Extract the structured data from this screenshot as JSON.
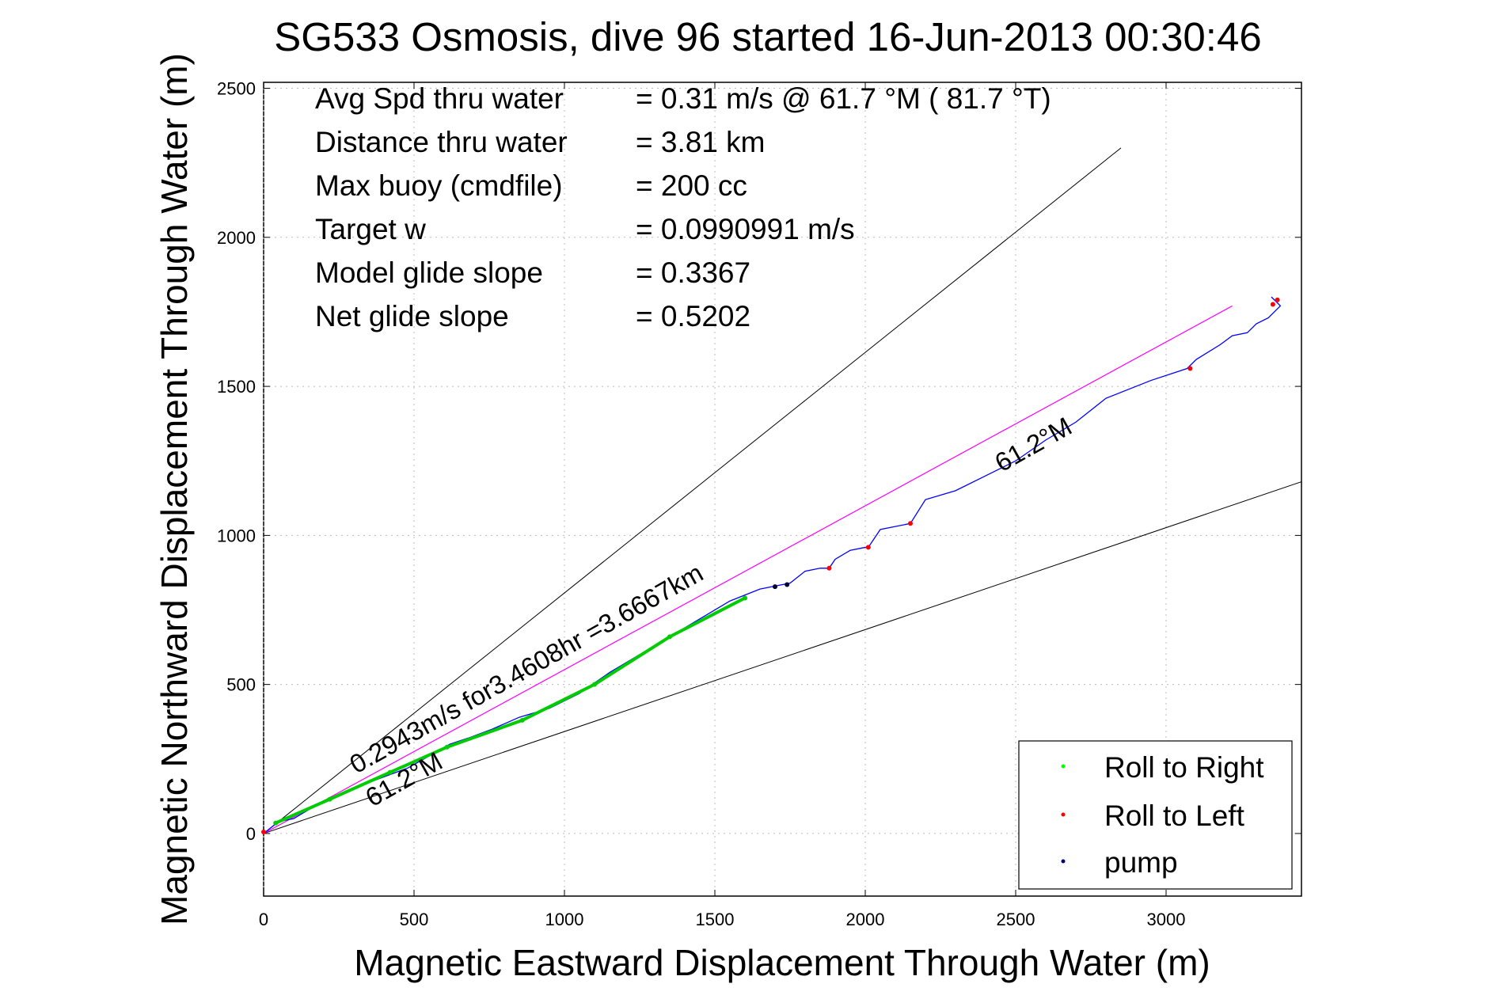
{
  "chart_data": {
    "type": "line",
    "title": "SG533 Osmosis, dive 96 started 16-Jun-2013 00:30:46",
    "xlabel": "Magnetic Eastward Displacement Through Water (m)",
    "ylabel": "Magnetic Northward Displacement Through Water (m)",
    "xlim": [
      0,
      3450
    ],
    "ylim": [
      -210,
      2520
    ],
    "xticks": [
      0,
      500,
      1000,
      1500,
      2000,
      2500,
      3000
    ],
    "yticks": [
      0,
      500,
      1000,
      1500,
      2000,
      2500
    ],
    "info": [
      {
        "label": "Avg Spd thru water",
        "value": "=  0.31 m/s @  61.7 °M ( 81.7 °T)"
      },
      {
        "label": "Distance thru water",
        "value": "=  3.81 km"
      },
      {
        "label": "Max buoy (cmdfile)",
        "value": "= 200 cc"
      },
      {
        "label": "Target w",
        "value": "= 0.0990991 m/s"
      },
      {
        "label": "Model glide slope",
        "value": "= 0.3367"
      },
      {
        "label": "Net glide slope",
        "value": "= 0.5202"
      }
    ],
    "annotations": {
      "speed_label": "0.2943m/s for3.4608hr =3.6667km",
      "heading_label_1": "61.2°M",
      "heading_label_2": "61.2°M"
    },
    "reference_lines": [
      {
        "name": "upper-envelope",
        "color": "#000000",
        "x": [
          0,
          2850
        ],
        "y": [
          0,
          2300
        ]
      },
      {
        "name": "lower-envelope",
        "color": "#000000",
        "x": [
          0,
          3450
        ],
        "y": [
          0,
          1180
        ]
      },
      {
        "name": "heading-line",
        "color": "#ff00ff",
        "x": [
          0,
          3220
        ],
        "y": [
          0,
          1770
        ]
      }
    ],
    "series": [
      {
        "name": "track",
        "color": "#0000ff",
        "x": [
          0,
          50,
          100,
          150,
          200,
          260,
          320,
          400,
          480,
          550,
          620,
          680,
          760,
          850,
          950,
          1050,
          1150,
          1250,
          1350,
          1450,
          1550,
          1650,
          1700,
          1750,
          1800,
          1850,
          1880,
          1900,
          1950,
          2000,
          2010,
          2050,
          2150,
          2200,
          2300,
          2400,
          2500,
          2600,
          2700,
          2800,
          2950,
          3070,
          3100,
          3180,
          3220,
          3270,
          3300,
          3340,
          3360,
          3380,
          3350
        ],
        "y": [
          0,
          40,
          50,
          80,
          110,
          130,
          160,
          190,
          220,
          260,
          300,
          320,
          350,
          390,
          420,
          470,
          540,
          600,
          660,
          720,
          780,
          820,
          830,
          840,
          880,
          890,
          890,
          920,
          950,
          960,
          960,
          1020,
          1040,
          1120,
          1150,
          1200,
          1250,
          1320,
          1380,
          1460,
          1520,
          1560,
          1590,
          1640,
          1670,
          1680,
          1710,
          1730,
          1750,
          1770,
          1800
        ]
      },
      {
        "name": "Roll to Right",
        "color": "#00cc00",
        "x": [
          40,
          220,
          420,
          610,
          860,
          1100,
          1350,
          1600
        ],
        "y": [
          35,
          115,
          205,
          290,
          380,
          500,
          660,
          790
        ]
      },
      {
        "name": "Roll to Left",
        "color": "#ff0000",
        "x": [
          0,
          1880,
          2010,
          2150,
          3080,
          3355,
          3370
        ],
        "y": [
          5,
          890,
          960,
          1040,
          1560,
          1775,
          1790
        ]
      },
      {
        "name": "pump",
        "color": "#000033",
        "x": [
          1700,
          1740
        ],
        "y": [
          828,
          835
        ]
      }
    ],
    "legend": {
      "placement": "bottom-right",
      "entries": [
        {
          "label": "Roll to Right",
          "color": "#00ff00"
        },
        {
          "label": "Roll to Left",
          "color": "#ff0000"
        },
        {
          "label": "pump",
          "color": "#000080"
        }
      ]
    }
  }
}
